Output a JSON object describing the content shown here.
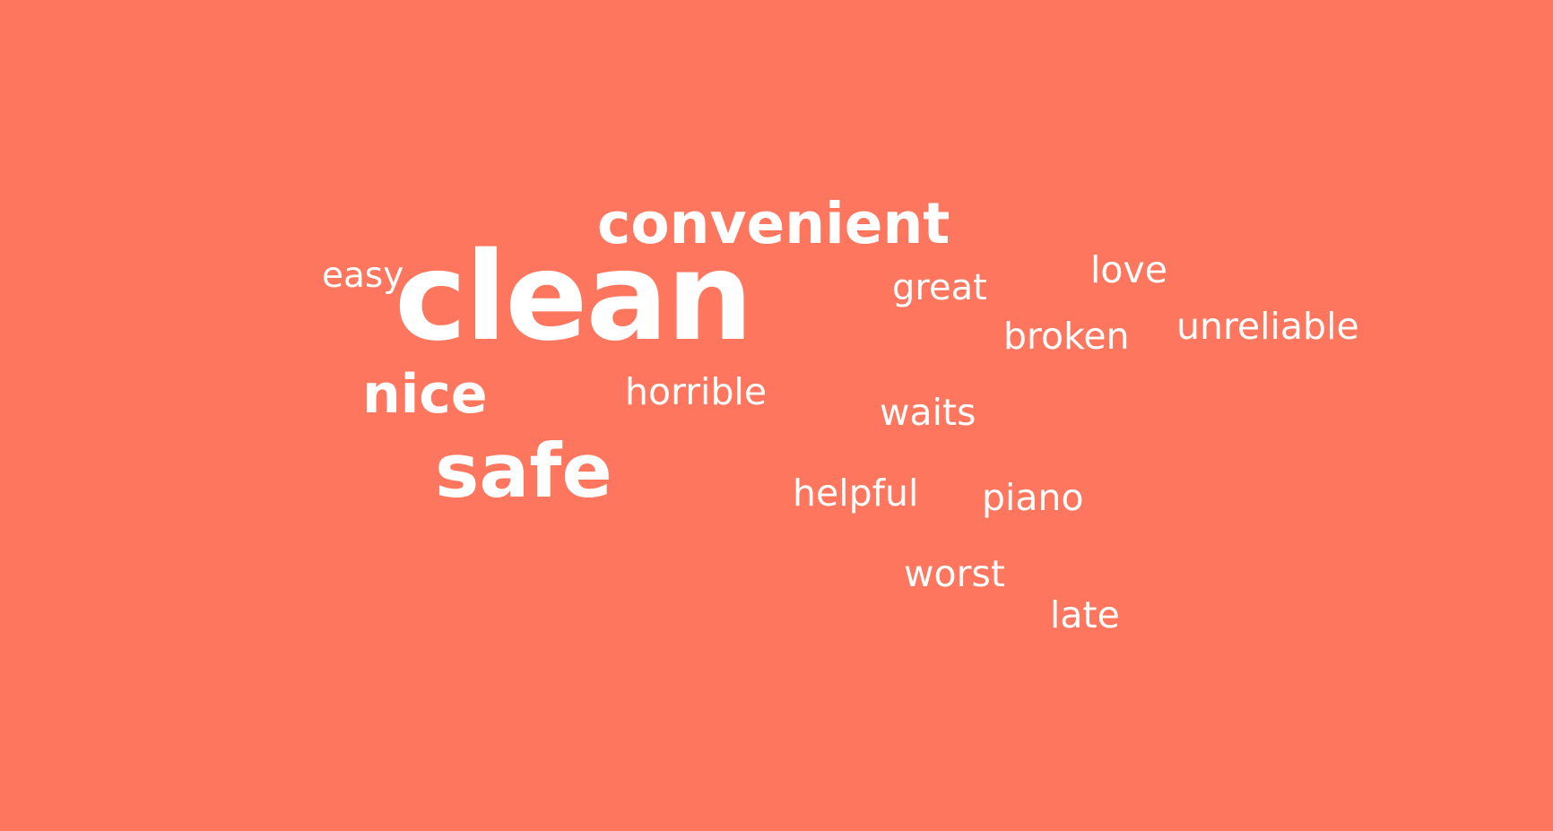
{
  "background_color": "#FF765E",
  "text_color": "#FFFFFF",
  "words": {
    "clean": "clean",
    "convenient": "convenient",
    "easy": "easy",
    "great": "great",
    "love": "love",
    "broken": "broken",
    "unreliable": "unreliable",
    "nice": "nice",
    "horrible": "horrible",
    "waits": "waits",
    "safe": "safe",
    "helpful": "helpful",
    "piano": "piano",
    "worst": "worst",
    "late": "late"
  }
}
